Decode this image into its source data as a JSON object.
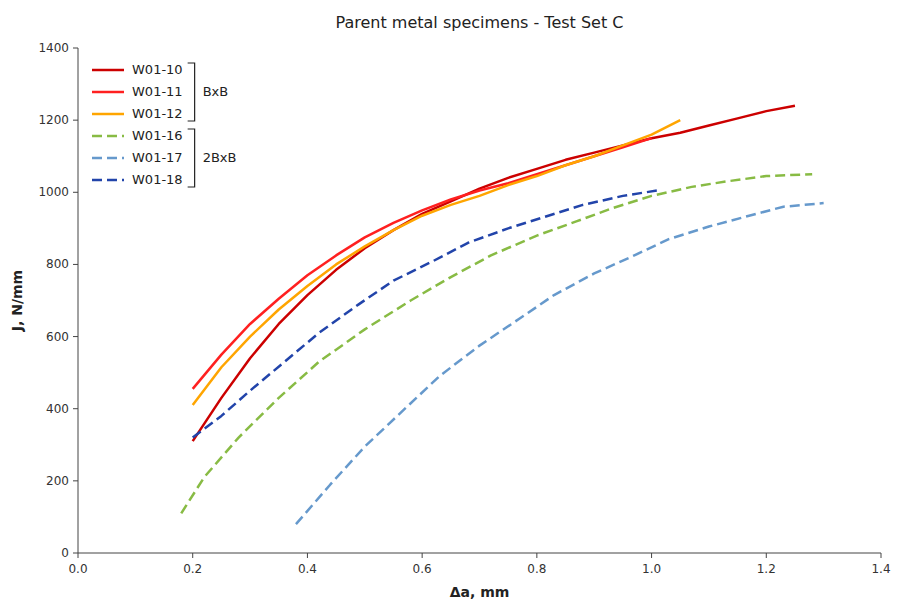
{
  "chart_data": {
    "type": "line",
    "title": "Parent metal specimens - Test Set C",
    "x_label": "Δa, mm",
    "y_label": "J, N/mm",
    "xlim": [
      0,
      1.4
    ],
    "ylim": [
      0,
      1400
    ],
    "xticks": [
      {
        "value": 0,
        "label": "0.0"
      },
      0.2,
      0.4,
      0.6,
      0.8,
      {
        "value": 1.0,
        "label": "1.0"
      },
      1.2,
      1.4
    ],
    "yticks": [
      0,
      200,
      400,
      600,
      800,
      1000,
      1200,
      1400
    ],
    "grid": false,
    "legend": "upper left",
    "series": [
      {
        "name": "W01-10",
        "color": "#cc0000",
        "line_style": "solid",
        "x": [
          0.2,
          0.25,
          0.3,
          0.35,
          0.4,
          0.45,
          0.5,
          0.55,
          0.6,
          0.65,
          0.7,
          0.75,
          0.8,
          0.85,
          0.9,
          0.95,
          1.0,
          1.05,
          1.1,
          1.15,
          1.2,
          1.25
        ],
        "values": [
          310,
          430,
          540,
          635,
          715,
          785,
          845,
          895,
          940,
          975,
          1010,
          1040,
          1065,
          1090,
          1110,
          1130,
          1150,
          1165,
          1185,
          1205,
          1225,
          1240
        ]
      },
      {
        "name": "W01-11",
        "color": "#ff2020",
        "line_style": "solid",
        "x": [
          0.2,
          0.25,
          0.3,
          0.35,
          0.4,
          0.45,
          0.5,
          0.55,
          0.6,
          0.65,
          0.7,
          0.75,
          0.8,
          0.85,
          0.9,
          0.95,
          1.0
        ],
        "values": [
          455,
          550,
          635,
          705,
          770,
          825,
          875,
          915,
          950,
          980,
          1005,
          1025,
          1050,
          1075,
          1100,
          1125,
          1150
        ]
      },
      {
        "name": "W01-12",
        "color": "#ffa500",
        "line_style": "solid",
        "x": [
          0.2,
          0.25,
          0.3,
          0.35,
          0.4,
          0.45,
          0.5,
          0.55,
          0.6,
          0.65,
          0.7,
          0.75,
          0.8,
          0.85,
          0.9,
          0.95,
          1.0,
          1.05
        ],
        "values": [
          410,
          515,
          600,
          675,
          740,
          800,
          850,
          895,
          935,
          965,
          990,
          1020,
          1045,
          1075,
          1100,
          1130,
          1160,
          1200
        ]
      },
      {
        "name": "W01-16",
        "color": "#88bb44",
        "line_style": "dashed",
        "x": [
          0.18,
          0.22,
          0.28,
          0.35,
          0.42,
          0.5,
          0.58,
          0.65,
          0.72,
          0.8,
          0.87,
          0.93,
          1.0,
          1.07,
          1.13,
          1.2,
          1.28
        ],
        "values": [
          110,
          210,
          320,
          430,
          530,
          620,
          700,
          765,
          825,
          880,
          920,
          955,
          990,
          1015,
          1030,
          1045,
          1050
        ]
      },
      {
        "name": "W01-17",
        "color": "#6699cc",
        "line_style": "dashed",
        "x": [
          0.38,
          0.44,
          0.5,
          0.57,
          0.63,
          0.7,
          0.77,
          0.83,
          0.9,
          0.97,
          1.03,
          1.1,
          1.17,
          1.23,
          1.3
        ],
        "values": [
          80,
          190,
          295,
          400,
          490,
          575,
          650,
          715,
          775,
          825,
          870,
          905,
          935,
          960,
          970
        ]
      },
      {
        "name": "W01-18",
        "color": "#2244aa",
        "line_style": "dashed",
        "x": [
          0.2,
          0.25,
          0.3,
          0.36,
          0.42,
          0.49,
          0.55,
          0.62,
          0.68,
          0.75,
          0.82,
          0.88,
          0.95,
          1.01
        ],
        "values": [
          320,
          380,
          450,
          530,
          610,
          690,
          755,
          810,
          860,
          900,
          935,
          965,
          990,
          1005
        ]
      }
    ],
    "annotations": [
      "BxB",
      "2BxB"
    ]
  }
}
